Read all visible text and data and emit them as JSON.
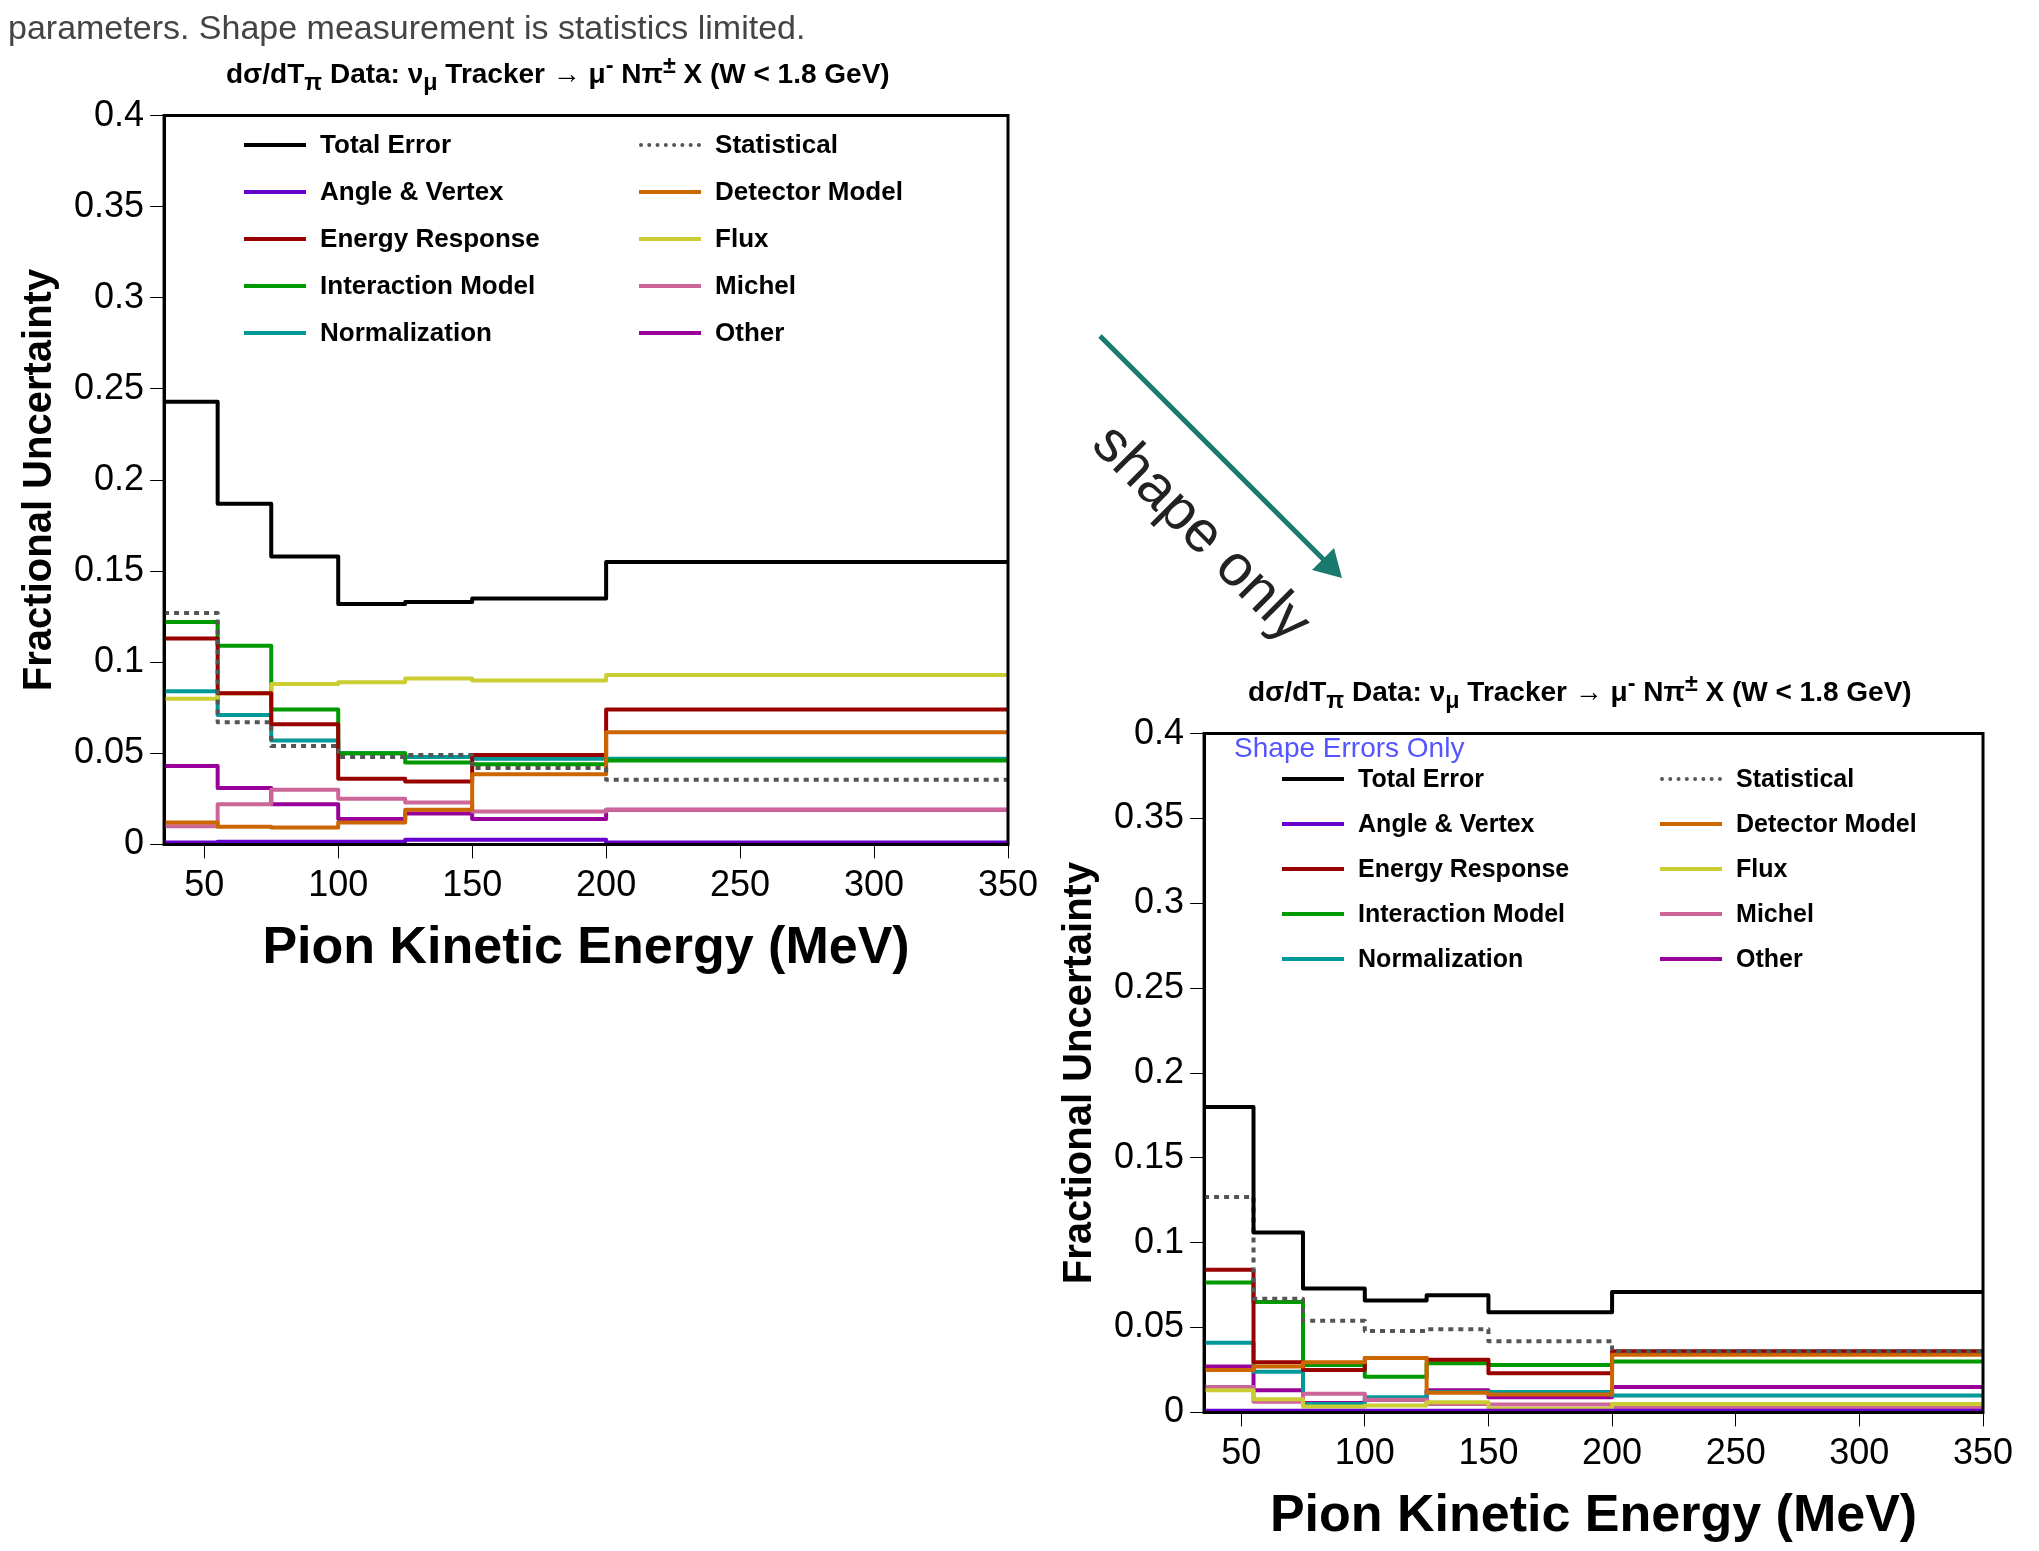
{
  "chart_data": [
    {
      "type": "histogram",
      "title": "dσ/dT$_{π}$ Data: ν$_{μ}$ Tracker → μ$^{-}$ Nπ$^{±}$ X  (W < 1.8 GeV)",
      "xlabel": "Pion Kinetic Energy (MeV)",
      "ylabel": "Fractional Uncertainty",
      "annotations": [
        "parameters. Shape measurement is statistics limited."
      ],
      "bins": [
        35,
        55,
        75,
        100,
        125,
        150,
        200,
        350
      ],
      "xlim": [
        35,
        350
      ],
      "xticks": [
        50,
        100,
        150,
        200,
        250,
        300,
        350
      ],
      "ylim": [
        0,
        0.4
      ],
      "yticks": [
        0,
        0.05,
        0.1,
        0.15,
        0.2,
        0.25,
        0.3,
        0.35,
        0.4
      ],
      "legend": "top",
      "series": [
        {
          "name": "Total Error",
          "color": "#000000",
          "values": [
            0.243,
            0.187,
            0.158,
            0.132,
            0.133,
            0.135,
            0.155
          ]
        },
        {
          "name": "Statistical",
          "color": "#555555",
          "line_style": "dotted",
          "values": [
            0.127,
            0.067,
            0.054,
            0.048,
            0.049,
            0.042,
            0.0355
          ]
        },
        {
          "name": "Angle & Vertex",
          "color": "#6600cc",
          "values": [
            0.001,
            0.0015,
            0.0015,
            0.0015,
            0.0025,
            0.0025,
            0.001
          ]
        },
        {
          "name": "Detector Model",
          "color": "#cc6600",
          "values": [
            0.012,
            0.0097,
            0.0093,
            0.012,
            0.019,
            0.0385,
            0.0615
          ]
        },
        {
          "name": "Energy Response",
          "color": "#990000",
          "values": [
            0.113,
            0.083,
            0.066,
            0.036,
            0.0345,
            0.049,
            0.074
          ]
        },
        {
          "name": "Flux",
          "color": "#cccc33",
          "values": [
            0.08,
            0.083,
            0.088,
            0.089,
            0.091,
            0.09,
            0.093
          ]
        },
        {
          "name": "Interaction Model",
          "color": "#009900",
          "values": [
            0.122,
            0.109,
            0.074,
            0.05,
            0.045,
            0.044,
            0.046
          ]
        },
        {
          "name": "Michel",
          "color": "#cc6699",
          "values": [
            0.01,
            0.022,
            0.03,
            0.025,
            0.023,
            0.018,
            0.019
          ]
        },
        {
          "name": "Normalization",
          "color": "#009999",
          "values": [
            0.084,
            0.071,
            0.057,
            0.05,
            0.048,
            0.047,
            0.047
          ]
        },
        {
          "name": "Other",
          "color": "#990099",
          "values": [
            0.043,
            0.031,
            0.022,
            0.014,
            0.017,
            0.014,
            0.019
          ]
        }
      ]
    },
    {
      "type": "histogram",
      "title": "dσ/dT$_{π}$ Data: ν$_{μ}$ Tracker → μ$^{-}$ Nπ$^{±}$ X  (W < 1.8 GeV)",
      "xlabel": "Pion Kinetic Energy (MeV)",
      "ylabel": "Fractional Uncertainty",
      "annotations": [
        "Shape Errors Only",
        "shape only"
      ],
      "bins": [
        35,
        55,
        75,
        100,
        125,
        150,
        200,
        350
      ],
      "xlim": [
        35,
        350
      ],
      "xticks": [
        50,
        100,
        150,
        200,
        250,
        300,
        350
      ],
      "ylim": [
        0,
        0.4
      ],
      "yticks": [
        0,
        0.05,
        0.1,
        0.15,
        0.2,
        0.25,
        0.3,
        0.35,
        0.4
      ],
      "legend": "top",
      "series": [
        {
          "name": "Total Error",
          "color": "#000000",
          "values": [
            0.18,
            0.106,
            0.073,
            0.066,
            0.069,
            0.059,
            0.071
          ]
        },
        {
          "name": "Statistical",
          "color": "#555555",
          "line_style": "dotted",
          "values": [
            0.127,
            0.067,
            0.054,
            0.048,
            0.049,
            0.042,
            0.036
          ]
        },
        {
          "name": "Angle & Vertex",
          "color": "#6600cc",
          "values": [
            0.001,
            0.001,
            0.001,
            0.001,
            0.001,
            0.001,
            0.001
          ]
        },
        {
          "name": "Detector Model",
          "color": "#cc6600",
          "values": [
            0.025,
            0.027,
            0.0295,
            0.032,
            0.0116,
            0.0106,
            0.034
          ]
        },
        {
          "name": "Energy Response",
          "color": "#990000",
          "values": [
            0.084,
            0.0295,
            0.025,
            0.032,
            0.031,
            0.023,
            0.036
          ]
        },
        {
          "name": "Flux",
          "color": "#cccc33",
          "values": [
            0.013,
            0.0078,
            0.0035,
            0.004,
            0.006,
            0.0022,
            0.005
          ]
        },
        {
          "name": "Interaction Model",
          "color": "#009900",
          "values": [
            0.0765,
            0.065,
            0.028,
            0.021,
            0.029,
            0.028,
            0.03
          ]
        },
        {
          "name": "Michel",
          "color": "#cc6699",
          "values": [
            0.015,
            0.0063,
            0.011,
            0.0074,
            0.005,
            0.0046,
            0.0027
          ]
        },
        {
          "name": "Normalization",
          "color": "#009999",
          "values": [
            0.041,
            0.024,
            0.005,
            0.009,
            0.012,
            0.012,
            0.01
          ]
        },
        {
          "name": "Other",
          "color": "#990099",
          "values": [
            0.027,
            0.013,
            0.0055,
            0.0074,
            0.013,
            0.009,
            0.015
          ]
        }
      ]
    }
  ]
}
